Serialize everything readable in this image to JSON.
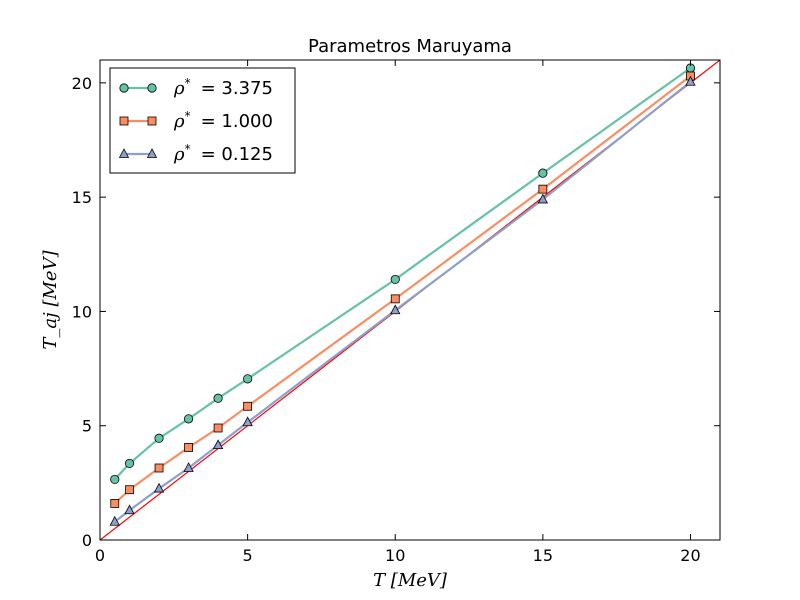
{
  "chart_data": {
    "type": "line",
    "title": "Parametros Maruyama",
    "xlabel": "T [MeV]",
    "ylabel": "T_aj [MeV]",
    "xlim": [
      0,
      21
    ],
    "ylim": [
      0,
      21
    ],
    "xticks": [
      0,
      5,
      10,
      15,
      20
    ],
    "yticks": [
      0,
      5,
      10,
      15,
      20
    ],
    "grid": false,
    "legend_position": "top-left",
    "series": [
      {
        "name": "ρ* = 3.375",
        "legend_prefix": "ρ",
        "legend_value": "= 3.375",
        "color": "#66c2a5",
        "marker": "circle",
        "x": [
          0.5,
          1,
          2,
          3,
          4,
          5,
          10,
          15,
          20
        ],
        "y": [
          2.65,
          3.35,
          4.45,
          5.3,
          6.2,
          7.05,
          11.4,
          16.05,
          20.65
        ]
      },
      {
        "name": "ρ* = 1.000",
        "legend_prefix": "ρ",
        "legend_value": "= 1.000",
        "color": "#fc8d62",
        "marker": "square",
        "x": [
          0.5,
          1,
          2,
          3,
          4,
          5,
          10,
          15,
          20
        ],
        "y": [
          1.6,
          2.2,
          3.15,
          4.05,
          4.9,
          5.85,
          10.55,
          15.35,
          20.3
        ]
      },
      {
        "name": "ρ* = 0.125",
        "legend_prefix": "ρ",
        "legend_value": "= 0.125",
        "color": "#8da0cb",
        "marker": "triangle",
        "x": [
          0.5,
          1,
          2,
          3,
          4,
          5,
          10,
          15,
          20
        ],
        "y": [
          0.8,
          1.3,
          2.25,
          3.15,
          4.15,
          5.15,
          10.05,
          14.9,
          20.05
        ]
      }
    ],
    "reference_line": {
      "type": "identity",
      "color": "#ff0000",
      "x": [
        0,
        21
      ],
      "y": [
        0,
        21
      ]
    }
  }
}
